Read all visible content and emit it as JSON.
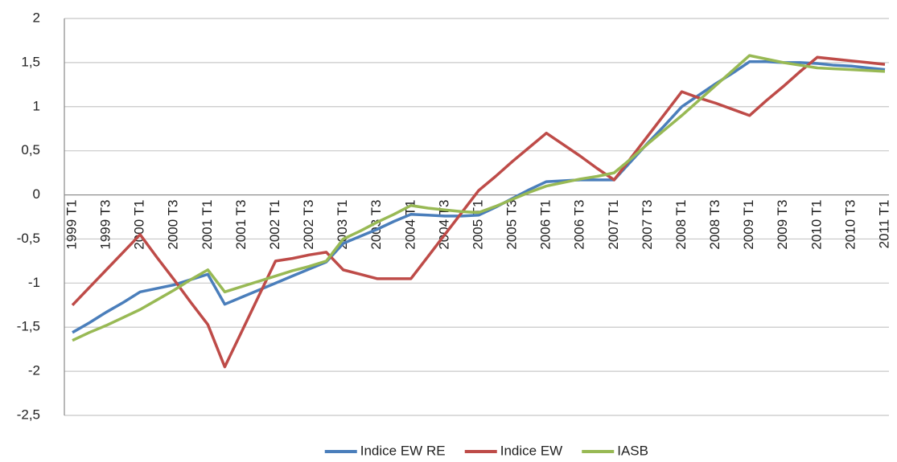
{
  "chart_data": {
    "type": "line",
    "categories": [
      "1999 T1",
      null,
      "1999 T3",
      null,
      "2000 T1",
      null,
      "2000 T3",
      null,
      "2001 T1",
      null,
      "2001 T3",
      null,
      "2002 T1",
      null,
      "2002 T3",
      null,
      "2003 T1",
      null,
      "2003 T3",
      null,
      "2004 T1",
      null,
      "2004 T3",
      null,
      "2005 T1",
      null,
      "2005 T3",
      null,
      "2006 T1",
      null,
      "2006 T3",
      null,
      "2007 T1",
      null,
      "2007 T3",
      null,
      "2008 T1",
      null,
      "2008 T3",
      null,
      "2009 T1",
      null,
      "2009 T3",
      null,
      "2010 T1",
      null,
      "2010 T3",
      null,
      "2011 T1"
    ],
    "series": [
      {
        "name": "Indice EW RE",
        "color": "#4a7ebb",
        "values": [
          -1.56,
          -1.45,
          -1.33,
          -1.22,
          -1.1,
          -1.06,
          -1.02,
          -0.96,
          -0.9,
          -1.24,
          -1.16,
          -1.08,
          -1.0,
          -0.92,
          -0.84,
          -0.76,
          -0.55,
          -0.47,
          -0.39,
          -0.3,
          -0.22,
          -0.23,
          -0.24,
          -0.24,
          -0.23,
          -0.14,
          -0.04,
          0.06,
          0.15,
          0.16,
          0.17,
          0.17,
          0.17,
          0.38,
          0.59,
          0.79,
          1.0,
          1.13,
          1.26,
          1.38,
          1.51,
          1.51,
          1.5,
          1.5,
          1.49,
          1.47,
          1.46,
          1.44,
          1.42
        ]
      },
      {
        "name": "Indice EW",
        "color": "#be4b48",
        "values": [
          -1.25,
          -1.05,
          -0.85,
          -0.65,
          -0.45,
          -0.71,
          -0.96,
          -1.22,
          -1.47,
          -1.95,
          -1.55,
          -1.15,
          -0.75,
          -0.72,
          -0.68,
          -0.65,
          -0.85,
          -0.9,
          -0.95,
          -0.95,
          -0.95,
          -0.7,
          -0.45,
          -0.2,
          0.05,
          0.21,
          0.38,
          0.54,
          0.7,
          0.57,
          0.44,
          0.3,
          0.17,
          0.42,
          0.67,
          0.92,
          1.17,
          1.1,
          1.04,
          0.97,
          0.9,
          1.07,
          1.23,
          1.4,
          1.56,
          1.54,
          1.52,
          1.5,
          1.48
        ]
      },
      {
        "name": "IASB",
        "color": "#98b954",
        "values": [
          -1.65,
          -1.56,
          -1.48,
          -1.39,
          -1.3,
          -1.19,
          -1.08,
          -0.96,
          -0.85,
          -1.1,
          -1.04,
          -0.98,
          -0.92,
          -0.86,
          -0.81,
          -0.75,
          -0.5,
          -0.41,
          -0.31,
          -0.22,
          -0.12,
          -0.15,
          -0.17,
          -0.19,
          -0.2,
          -0.13,
          -0.05,
          0.03,
          0.1,
          0.14,
          0.18,
          0.21,
          0.25,
          0.41,
          0.58,
          0.74,
          0.9,
          1.07,
          1.24,
          1.41,
          1.58,
          1.54,
          1.5,
          1.47,
          1.44,
          1.43,
          1.42,
          1.41,
          1.4
        ]
      }
    ],
    "ylim": [
      -2.5,
      2
    ],
    "yticks": [
      {
        "value": -2.5,
        "label": "-2,5"
      },
      -2,
      {
        "value": -1.5,
        "label": "-1,5"
      },
      -1,
      {
        "value": -0.5,
        "label": "-0,5"
      },
      0,
      {
        "value": 0.5,
        "label": "0,5"
      },
      1,
      {
        "value": 1.5,
        "label": "1,5"
      },
      2
    ],
    "grid": true,
    "legend": "bottom"
  }
}
